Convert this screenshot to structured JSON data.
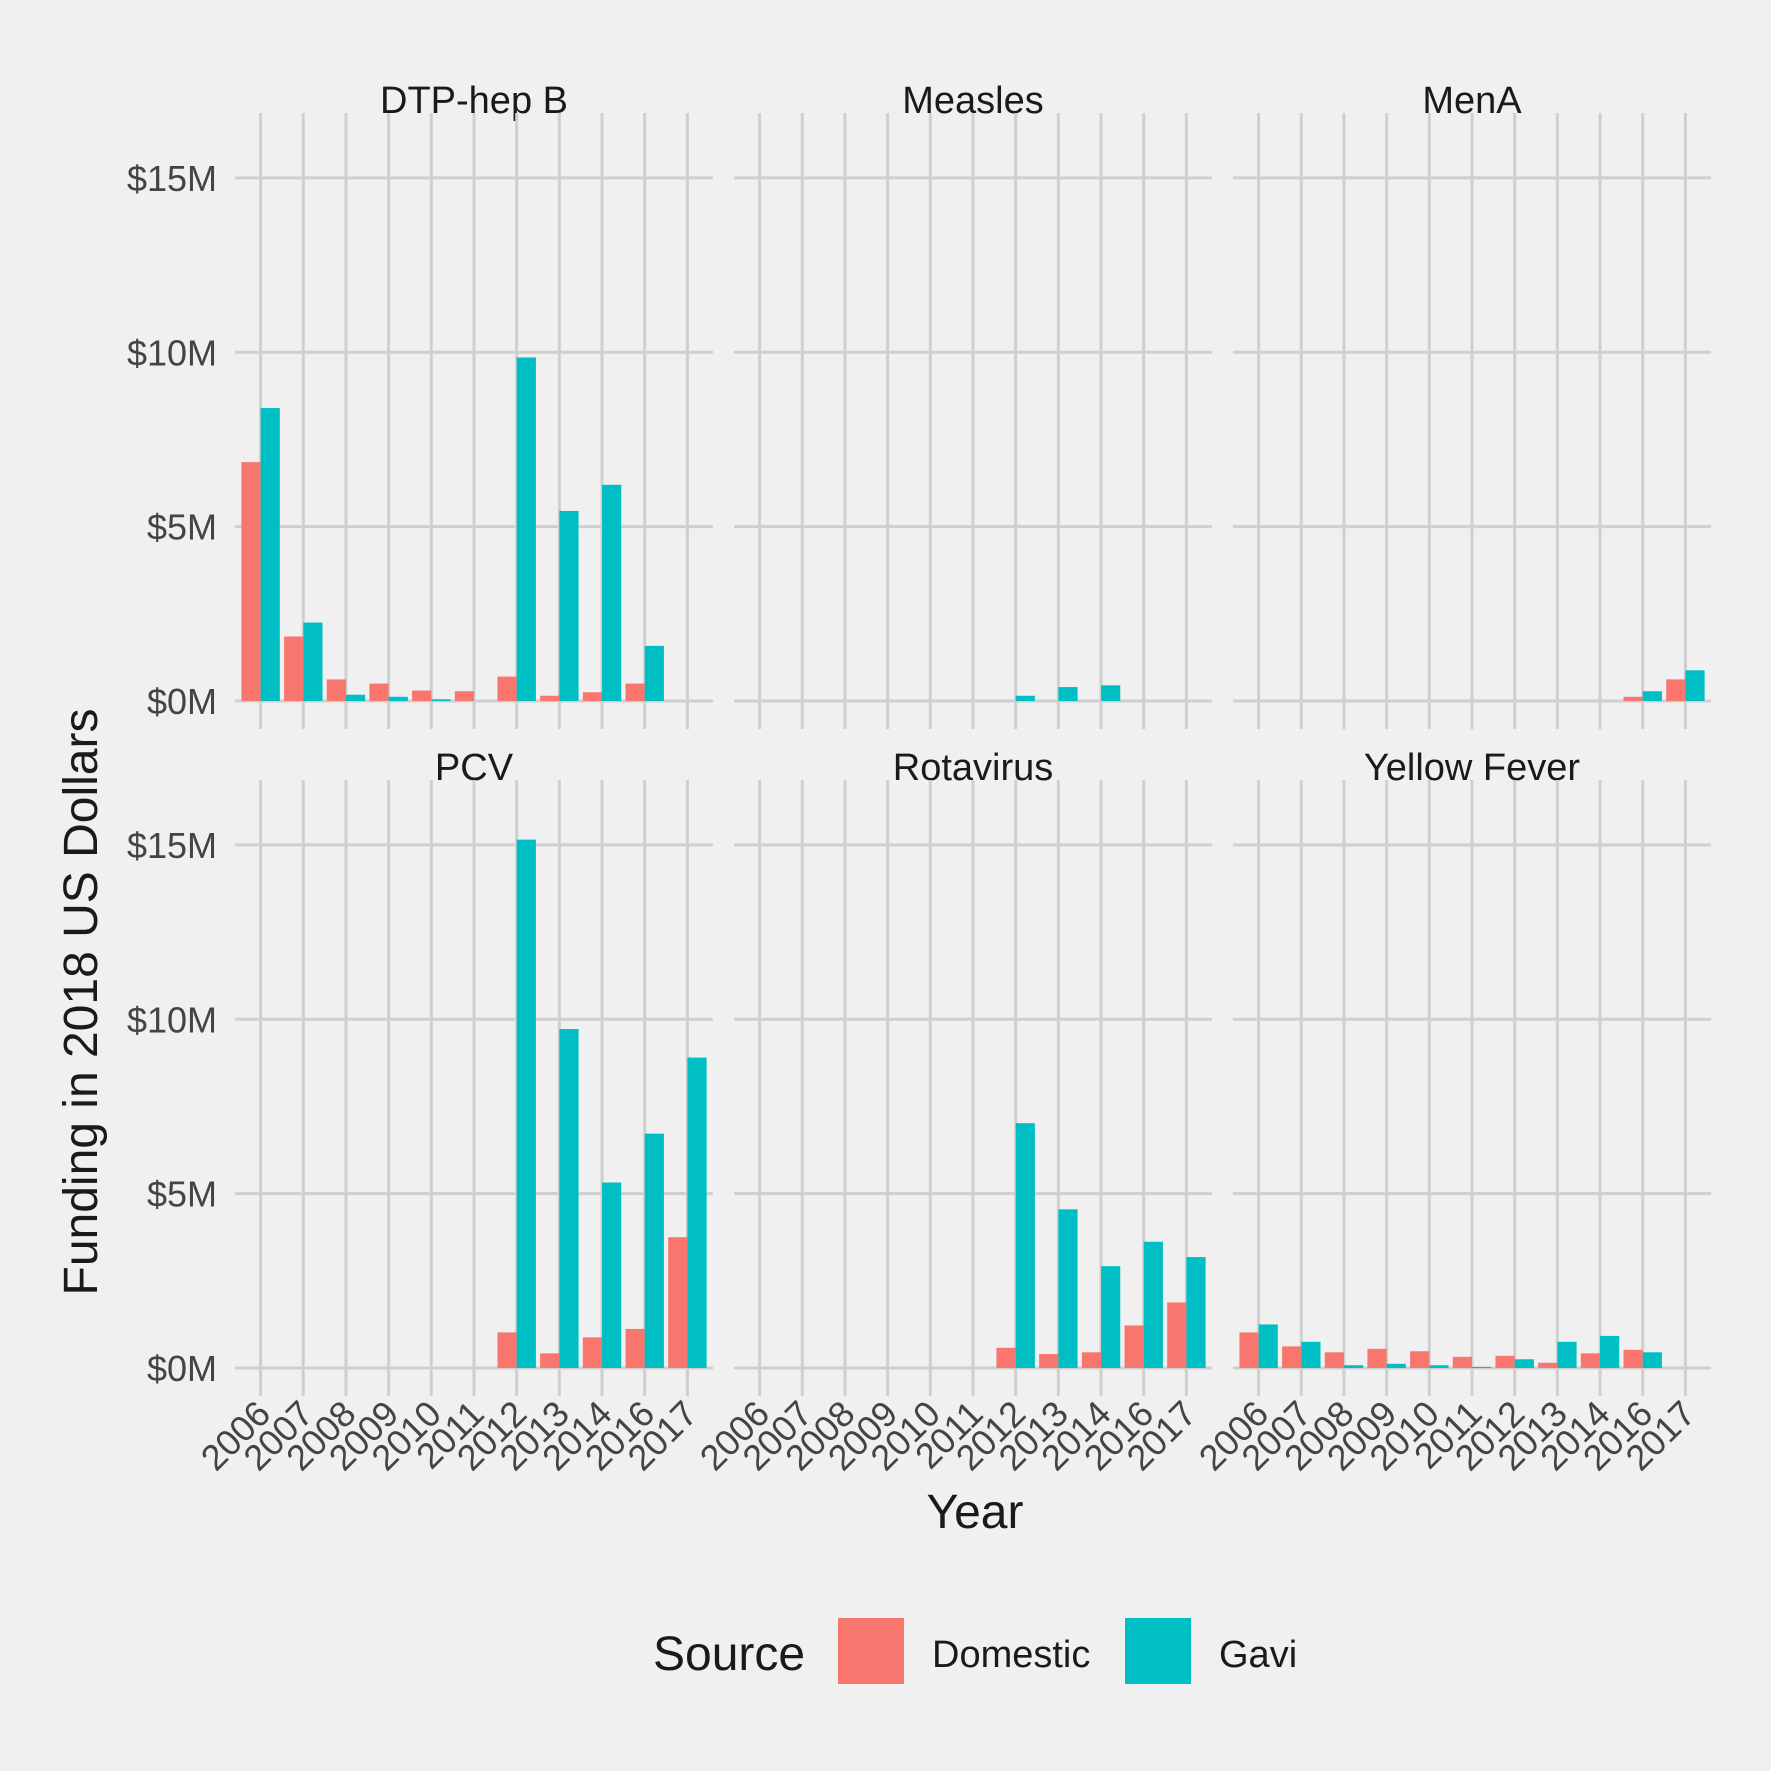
{
  "chart_data": {
    "type": "bar",
    "layout": "faceted-grouped",
    "xlabel": "Year",
    "ylabel": "Funding in 2018 US Dollars",
    "ylim": [
      0,
      16000000
    ],
    "y_ticks": [
      0,
      5000000,
      10000000,
      15000000
    ],
    "y_tick_labels": [
      "$0M",
      "$5M",
      "$10M",
      "$15M"
    ],
    "categories": [
      "2006",
      "2007",
      "2008",
      "2009",
      "2010",
      "2011",
      "2012",
      "2013",
      "2014",
      "2016",
      "2017"
    ],
    "grid": true,
    "legend": {
      "title": "Source",
      "placement": "bottom",
      "entries": [
        {
          "name": "Domestic",
          "color": "#F8766D"
        },
        {
          "name": "Gavi",
          "color": "#00BFC4"
        }
      ]
    },
    "facets": [
      {
        "title": "DTP-hep B",
        "series": [
          {
            "name": "Domestic",
            "values": [
              6.85,
              1.85,
              0.62,
              0.5,
              0.3,
              0.28,
              0.7,
              0.15,
              0.25,
              0.5,
              null
            ]
          },
          {
            "name": "Gavi",
            "values": [
              8.4,
              2.25,
              0.18,
              0.12,
              0.05,
              null,
              9.85,
              5.45,
              6.2,
              1.58,
              null
            ]
          }
        ]
      },
      {
        "title": "Measles",
        "series": [
          {
            "name": "Domestic",
            "values": [
              null,
              null,
              null,
              null,
              null,
              null,
              null,
              null,
              null,
              null,
              null
            ]
          },
          {
            "name": "Gavi",
            "values": [
              null,
              null,
              null,
              null,
              null,
              null,
              0.15,
              0.4,
              0.45,
              null,
              null
            ]
          }
        ]
      },
      {
        "title": "MenA",
        "series": [
          {
            "name": "Domestic",
            "values": [
              null,
              null,
              null,
              null,
              null,
              null,
              null,
              null,
              null,
              0.12,
              0.62
            ]
          },
          {
            "name": "Gavi",
            "values": [
              null,
              null,
              null,
              null,
              null,
              null,
              null,
              null,
              null,
              0.28,
              0.88
            ]
          }
        ]
      },
      {
        "title": "PCV",
        "series": [
          {
            "name": "Domestic",
            "values": [
              null,
              null,
              null,
              null,
              null,
              null,
              1.02,
              0.42,
              0.88,
              1.12,
              3.75
            ]
          },
          {
            "name": "Gavi",
            "values": [
              null,
              null,
              null,
              null,
              null,
              null,
              15.15,
              9.72,
              5.32,
              6.72,
              8.9
            ]
          }
        ]
      },
      {
        "title": "Rotavirus",
        "series": [
          {
            "name": "Domestic",
            "values": [
              null,
              null,
              null,
              null,
              null,
              null,
              0.58,
              0.4,
              0.45,
              1.22,
              1.88
            ]
          },
          {
            "name": "Gavi",
            "values": [
              null,
              null,
              null,
              null,
              null,
              null,
              7.02,
              4.55,
              2.92,
              3.62,
              3.18
            ]
          }
        ]
      },
      {
        "title": "Yellow Fever",
        "series": [
          {
            "name": "Domestic",
            "values": [
              1.02,
              0.62,
              0.45,
              0.55,
              0.48,
              0.32,
              0.35,
              0.15,
              0.42,
              0.52,
              null
            ]
          },
          {
            "name": "Gavi",
            "values": [
              1.25,
              0.75,
              0.08,
              0.12,
              0.08,
              0.03,
              0.25,
              0.75,
              0.92,
              0.45,
              null
            ]
          }
        ]
      }
    ],
    "value_unit": "millions USD"
  }
}
